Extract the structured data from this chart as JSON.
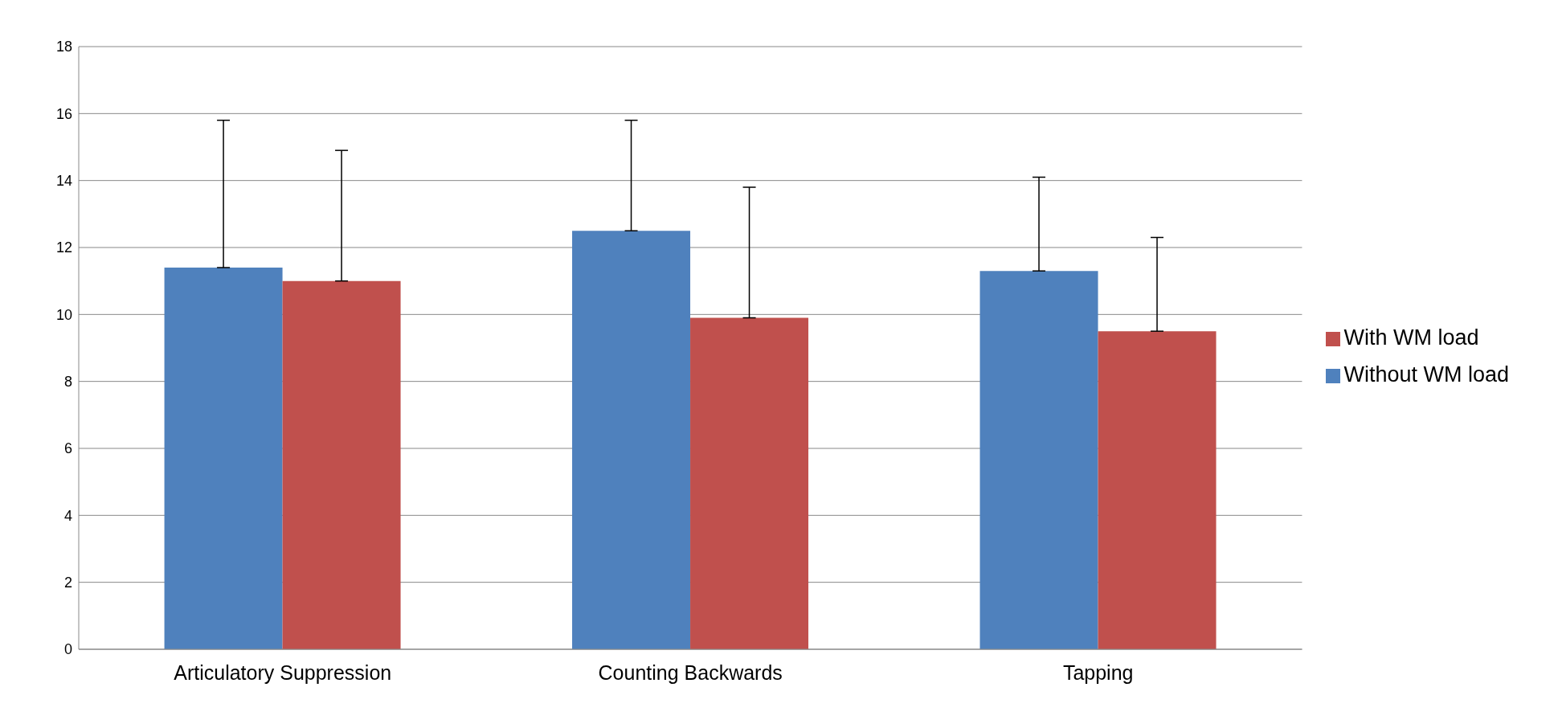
{
  "chart_data": {
    "type": "bar",
    "categories": [
      "Articulatory Suppression",
      "Counting Backwards",
      "Tapping"
    ],
    "series": [
      {
        "name": "Without WM load",
        "color": "#4f81bd",
        "values": [
          11.4,
          12.5,
          11.3
        ],
        "errors": [
          [
            11.4,
            15.8
          ],
          [
            12.5,
            15.8
          ],
          [
            11.3,
            14.1
          ]
        ]
      },
      {
        "name": "With WM load",
        "color": "#c0504d",
        "values": [
          11.0,
          9.9,
          9.5
        ],
        "errors": [
          [
            11.0,
            14.9
          ],
          [
            9.9,
            13.8
          ],
          [
            9.5,
            12.3
          ]
        ]
      }
    ],
    "ylim": [
      0,
      18
    ],
    "yticks": [
      0,
      2,
      4,
      6,
      8,
      10,
      12,
      14,
      16,
      18
    ],
    "grid": "y",
    "legend": "right"
  }
}
